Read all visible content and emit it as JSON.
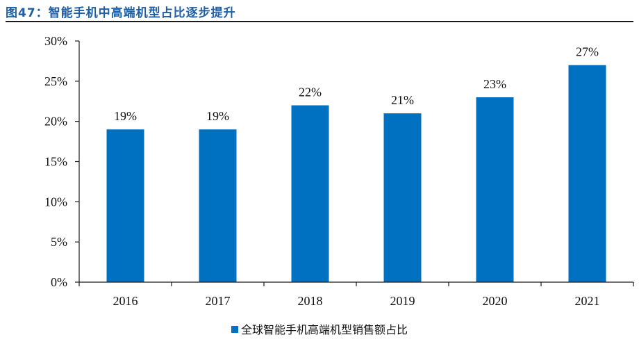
{
  "figure": {
    "title": "图47：智能手机中高端机型占比逐步提升"
  },
  "colors": {
    "bar": "#0070c0",
    "title": "#1f5fa6",
    "axis": "#1a1a1a"
  },
  "chart_data": {
    "type": "bar",
    "categories": [
      "2016",
      "2017",
      "2018",
      "2019",
      "2020",
      "2021"
    ],
    "series": [
      {
        "name": "全球智能手机高端机型销售额占比",
        "values": [
          19,
          19,
          22,
          21,
          23,
          27
        ],
        "labels": [
          "19%",
          "19%",
          "22%",
          "21%",
          "23%",
          "27%"
        ]
      }
    ],
    "ylim": [
      0,
      30
    ],
    "yticks": [
      0,
      5,
      10,
      15,
      20,
      25,
      30
    ],
    "ytick_labels": [
      "0%",
      "5%",
      "10%",
      "15%",
      "20%",
      "25%",
      "30%"
    ],
    "grid": false,
    "legend_position": "bottom"
  }
}
